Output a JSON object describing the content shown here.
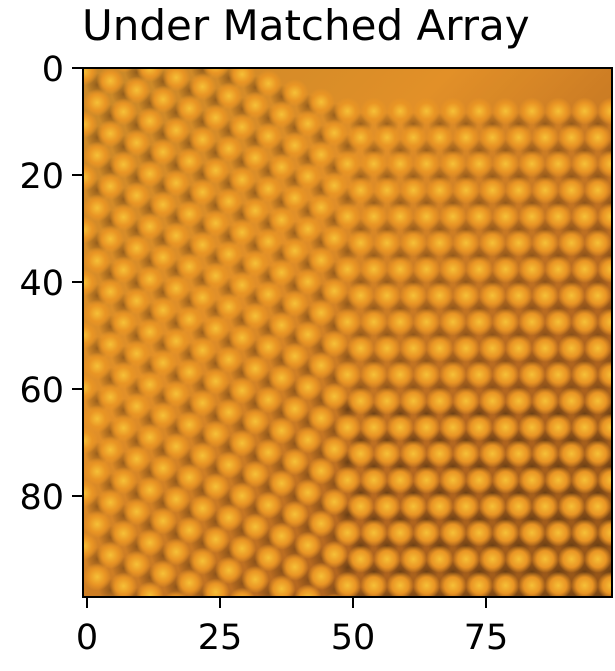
{
  "title": "Under Matched Array",
  "image": {
    "description_id": "moire-pattern-lens-array",
    "colors": {
      "dark": "#6b3e12",
      "mid": "#d7821e",
      "bright": "#f3c12d",
      "hot": "#ff7a1b"
    }
  },
  "axes": {
    "y_ticks": [
      {
        "label": "0",
        "value": 0
      },
      {
        "label": "20",
        "value": 20
      },
      {
        "label": "40",
        "value": 40
      },
      {
        "label": "60",
        "value": 60
      },
      {
        "label": "80",
        "value": 80
      }
    ],
    "x_ticks": [
      {
        "label": "0",
        "value": 0
      },
      {
        "label": "25",
        "value": 25
      },
      {
        "label": "50",
        "value": 50
      },
      {
        "label": "75",
        "value": 75
      }
    ],
    "range": [
      0,
      99
    ]
  }
}
